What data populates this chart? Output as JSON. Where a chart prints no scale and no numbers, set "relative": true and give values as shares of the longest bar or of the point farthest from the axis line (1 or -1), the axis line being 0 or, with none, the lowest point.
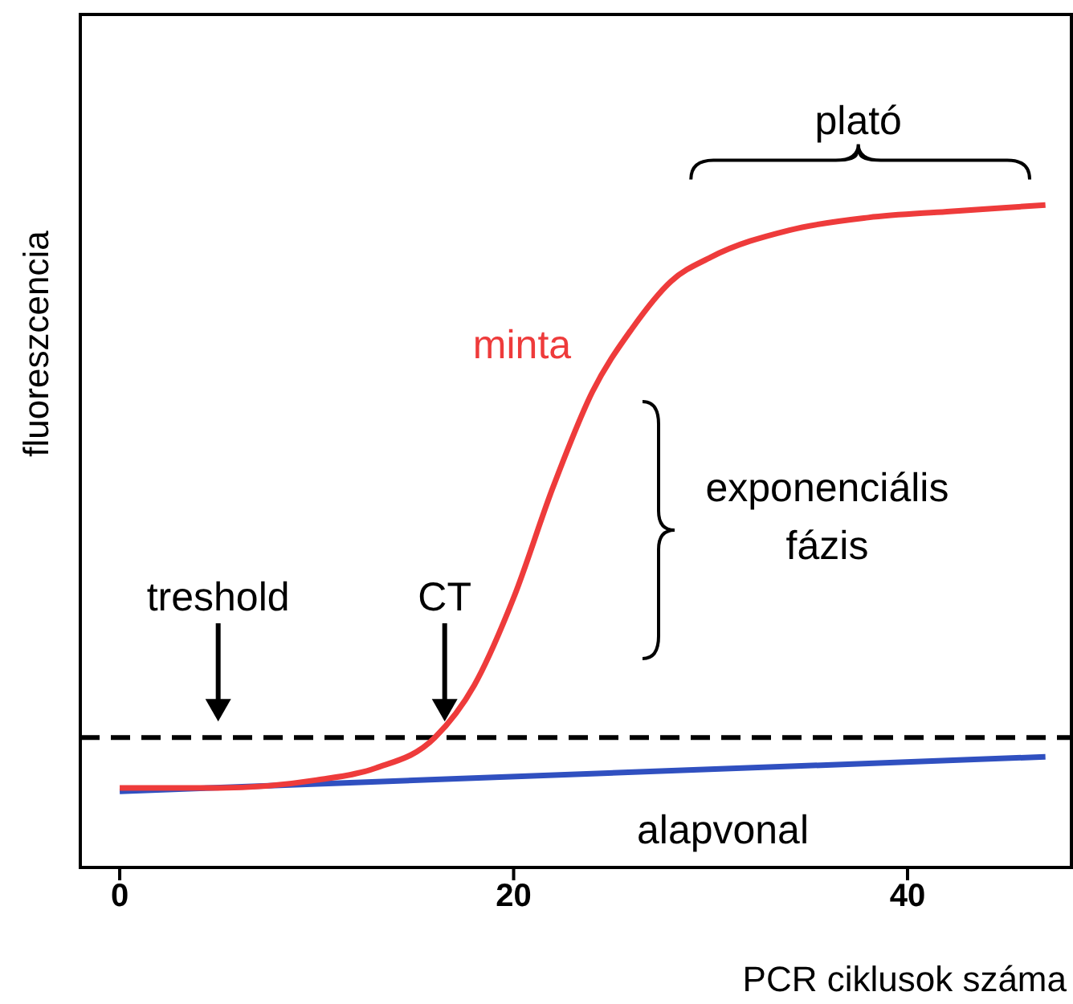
{
  "chart_data": {
    "type": "line",
    "xlabel": "PCR ciklusok száma",
    "ylabel": "fluoreszcencia",
    "relative": true,
    "xlim": [
      -2,
      48.4
    ],
    "xticks": [
      0,
      20,
      40
    ],
    "grid": false,
    "legend": false,
    "marker": "none",
    "line_style": "solid",
    "series": [
      {
        "name": "minta",
        "color": "#ee3b3b",
        "x": [
          0,
          5,
          10,
          13,
          16,
          18,
          20,
          22,
          24,
          26,
          28,
          30,
          34,
          38,
          42,
          47
        ],
        "values": [
          0.12,
          0.12,
          0.132,
          0.15,
          0.196,
          0.275,
          0.407,
          0.574,
          0.718,
          0.813,
          0.885,
          0.921,
          0.962,
          0.981,
          0.99,
          1.0
        ]
      },
      {
        "name": "alapvonal",
        "color": "#3050c0",
        "x": [
          0,
          47
        ],
        "values": [
          0.115,
          0.167
        ]
      }
    ],
    "ref_lines": [
      {
        "axis": "y",
        "value": 0.196,
        "color": "#000000",
        "line_style": "dashed"
      }
    ],
    "annotations": [
      {
        "text": "treshold",
        "x": 5,
        "y": 0.196
      },
      {
        "text": "CT",
        "x": 16.5,
        "y": 0.196
      },
      {
        "text": "plató",
        "x": 37.5,
        "y": 0.99
      },
      "exponenciális fázis"
    ]
  }
}
